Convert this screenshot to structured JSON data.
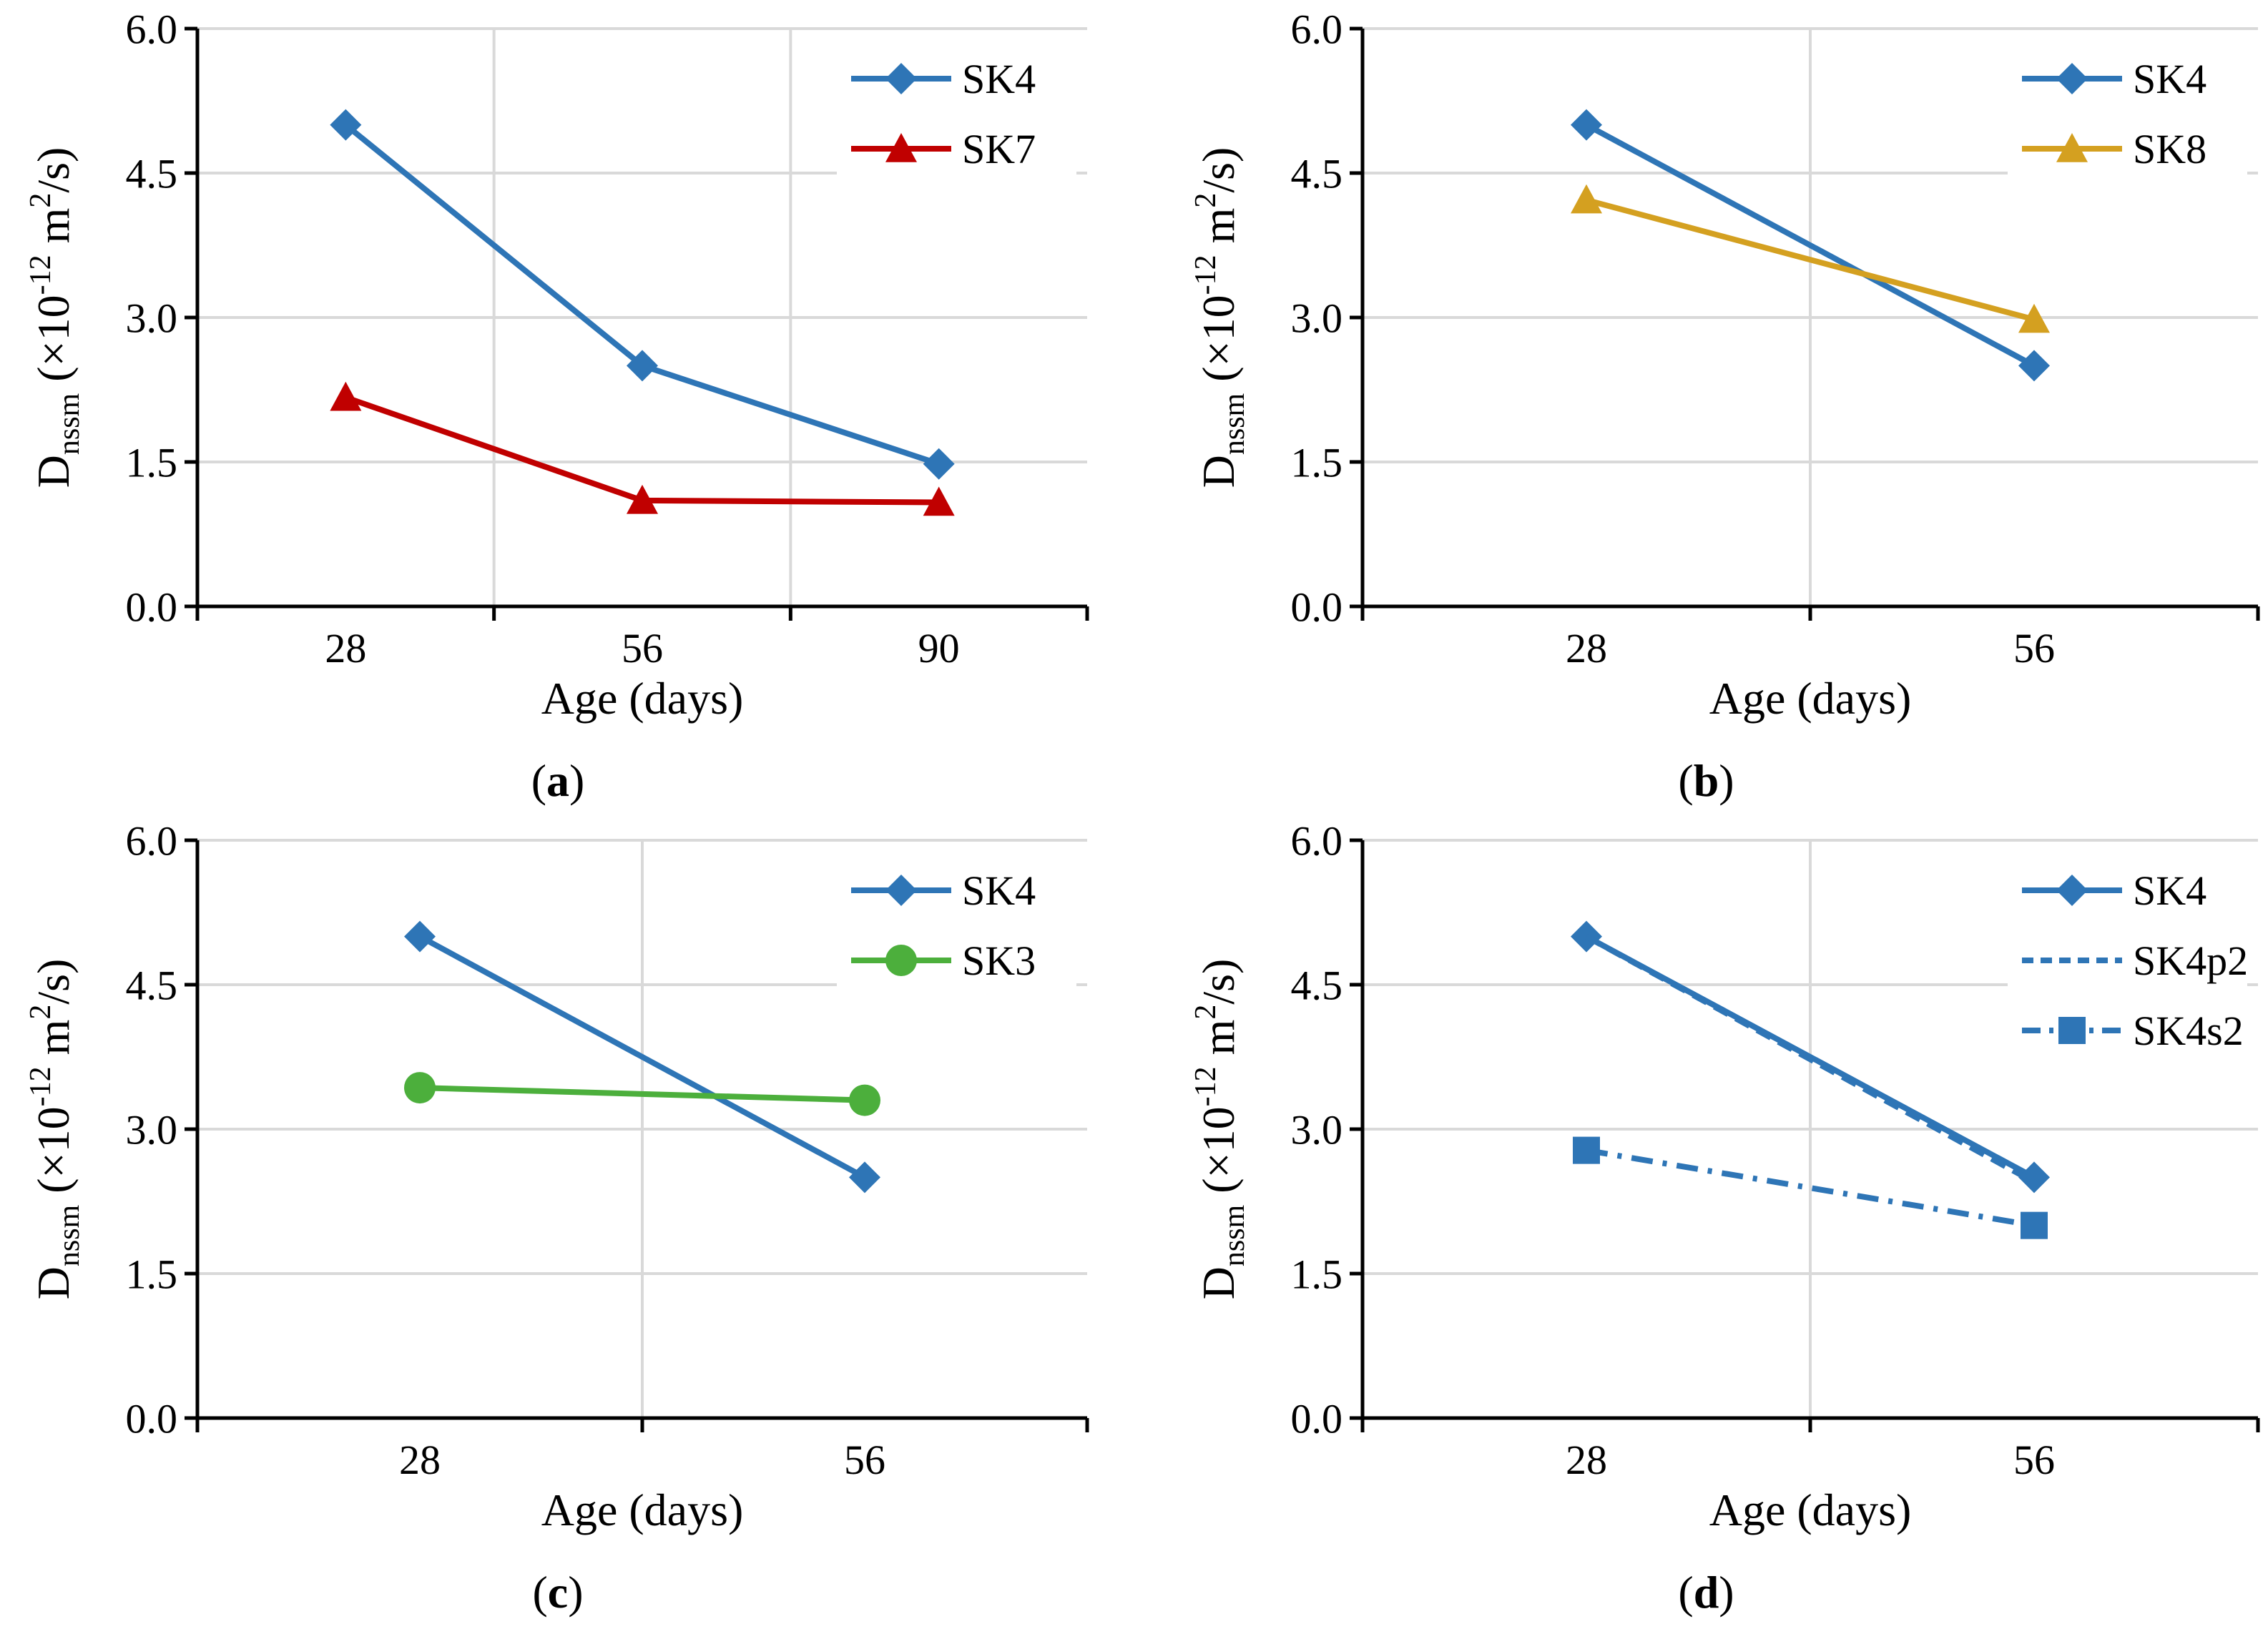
{
  "figure": {
    "panels": [
      {
        "label_open": "(",
        "label_letter": "a",
        "label_close": ")"
      },
      {
        "label_open": "(",
        "label_letter": "b",
        "label_close": ")"
      },
      {
        "label_open": "(",
        "label_letter": "c",
        "label_close": ")"
      },
      {
        "label_open": "(",
        "label_letter": "d",
        "label_close": ")"
      }
    ]
  },
  "chart_data": [
    {
      "type": "line",
      "panel": "a",
      "title": "",
      "xlabel": "Age (days)",
      "ylabel": {
        "main": "D",
        "sub": "nssm",
        "open": " (×10",
        "exp": "-12",
        "unit": " m",
        "unit_exp": "2",
        "close": "/s)"
      },
      "categories": [
        "28",
        "56",
        "90"
      ],
      "yticks": [
        "0.0",
        "1.5",
        "3.0",
        "4.5",
        "6.0"
      ],
      "ylim": [
        0,
        6
      ],
      "grid": true,
      "legend_position": "top-right",
      "series": [
        {
          "name": "SK4",
          "values": [
            5.0,
            2.5,
            1.48
          ],
          "color": "#2E75B6",
          "marker": "diamond",
          "dash": "solid"
        },
        {
          "name": "SK7",
          "values": [
            2.17,
            1.1,
            1.08
          ],
          "color": "#C00000",
          "marker": "triangle",
          "dash": "solid"
        }
      ]
    },
    {
      "type": "line",
      "panel": "b",
      "title": "",
      "xlabel": "Age (days)",
      "ylabel": {
        "main": "D",
        "sub": "nssm",
        "open": " (×10",
        "exp": "-12",
        "unit": " m",
        "unit_exp": "2",
        "close": "/s)"
      },
      "categories": [
        "28",
        "56"
      ],
      "yticks": [
        "0.0",
        "1.5",
        "3.0",
        "4.5",
        "6.0"
      ],
      "ylim": [
        0,
        6
      ],
      "grid": true,
      "legend_position": "top-right",
      "series": [
        {
          "name": "SK4",
          "values": [
            5.0,
            2.5
          ],
          "color": "#2E75B6",
          "marker": "diamond",
          "dash": "solid"
        },
        {
          "name": "SK8",
          "values": [
            4.22,
            2.98
          ],
          "color": "#D4A020",
          "marker": "triangle",
          "dash": "solid"
        }
      ]
    },
    {
      "type": "line",
      "panel": "c",
      "title": "",
      "xlabel": "Age (days)",
      "ylabel": {
        "main": "D",
        "sub": "nssm",
        "open": " (×10",
        "exp": "-12",
        "unit": " m",
        "unit_exp": "2",
        "close": "/s)"
      },
      "categories": [
        "28",
        "56"
      ],
      "yticks": [
        "0.0",
        "1.5",
        "3.0",
        "4.5",
        "6.0"
      ],
      "ylim": [
        0,
        6
      ],
      "grid": true,
      "legend_position": "top-right",
      "series": [
        {
          "name": "SK4",
          "values": [
            5.0,
            2.5
          ],
          "color": "#2E75B6",
          "marker": "diamond",
          "dash": "solid"
        },
        {
          "name": "SK3",
          "values": [
            3.43,
            3.3
          ],
          "color": "#4CAF3C",
          "marker": "circle",
          "dash": "solid"
        }
      ]
    },
    {
      "type": "line",
      "panel": "d",
      "title": "",
      "xlabel": "Age (days)",
      "ylabel": {
        "main": "D",
        "sub": "nssm",
        "open": " (×10",
        "exp": "-12",
        "unit": " m",
        "unit_exp": "2",
        "close": "/s)"
      },
      "categories": [
        "28",
        "56"
      ],
      "yticks": [
        "0.0",
        "1.5",
        "3.0",
        "4.5",
        "6.0"
      ],
      "ylim": [
        0,
        6
      ],
      "grid": true,
      "legend_position": "top-right",
      "series": [
        {
          "name": "SK4",
          "values": [
            5.0,
            2.5
          ],
          "color": "#2E75B6",
          "marker": "diamond",
          "dash": "solid"
        },
        {
          "name": "SK4p2",
          "values": [
            5.0,
            2.45
          ],
          "color": "#2E75B6",
          "marker": "none",
          "dash": "dashed"
        },
        {
          "name": "SK4s2",
          "values": [
            2.78,
            2.0
          ],
          "color": "#2E75B6",
          "marker": "square",
          "dash": "dashdot"
        }
      ]
    }
  ]
}
